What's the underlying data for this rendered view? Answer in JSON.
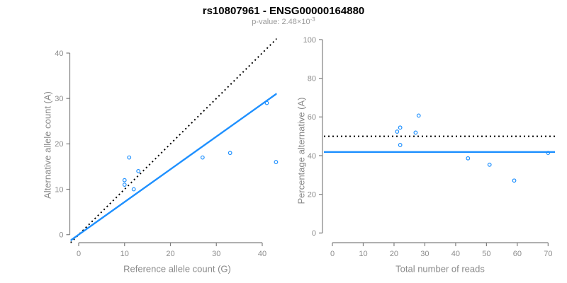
{
  "header": {
    "title": "rs10807961 - ENSG00000164880",
    "subtitle_prefix": "p-value: 2.48×10",
    "subtitle_exponent": "-3"
  },
  "colors": {
    "accent_blue": "#1E90FF",
    "axis_line": "#808080",
    "tick_text": "#8C8C8C",
    "label_text": "#8A8A8A",
    "subtitle_text": "#9A9A9A",
    "identity_line": "#000000"
  },
  "chart_data": [
    {
      "id": "allele-count-scatter",
      "type": "scatter",
      "xlabel": "Reference allele count (G)",
      "ylabel": "Alternative allele count (A)",
      "xticks": [
        0,
        10,
        20,
        30,
        40
      ],
      "yticks": [
        0,
        10,
        20,
        30,
        40
      ],
      "xlim": [
        0,
        43
      ],
      "ylim": [
        0,
        43
      ],
      "grid": false,
      "legend": null,
      "points": [
        [
          10,
          11
        ],
        [
          10,
          12
        ],
        [
          11,
          17
        ],
        [
          12,
          10
        ],
        [
          13,
          14
        ],
        [
          27,
          17
        ],
        [
          33,
          18
        ],
        [
          41,
          29
        ],
        [
          43,
          16
        ]
      ],
      "lines": [
        {
          "name": "identity-line",
          "slope": 1,
          "intercept": 0,
          "style": "dotted",
          "color": "#000000"
        },
        {
          "name": "fitted-ratio-line",
          "slope": 0.72,
          "intercept": 0,
          "style": "solid",
          "color": "#1E90FF"
        }
      ]
    },
    {
      "id": "percentage-scatter",
      "type": "scatter",
      "xlabel": "Total number of reads",
      "ylabel": "Percentage alternative (A)",
      "xticks": [
        0,
        10,
        20,
        30,
        40,
        50,
        60,
        70
      ],
      "yticks": [
        0,
        20,
        40,
        60,
        80,
        100
      ],
      "xlim": [
        0,
        70
      ],
      "ylim": [
        0,
        100
      ],
      "grid": false,
      "legend": null,
      "points": [
        [
          21,
          52.4
        ],
        [
          22,
          45.5
        ],
        [
          22,
          54.5
        ],
        [
          27,
          51.9
        ],
        [
          28,
          60.7
        ],
        [
          44,
          38.6
        ],
        [
          51,
          35.3
        ],
        [
          59,
          27.1
        ],
        [
          70,
          41.4
        ]
      ],
      "lines": [
        {
          "name": "expected-50pct-line",
          "slope": 0,
          "intercept": 50,
          "style": "dotted",
          "color": "#000000"
        },
        {
          "name": "mean-percentage-line",
          "slope": 0,
          "intercept": 41.9,
          "style": "solid",
          "color": "#1E90FF"
        }
      ]
    }
  ]
}
